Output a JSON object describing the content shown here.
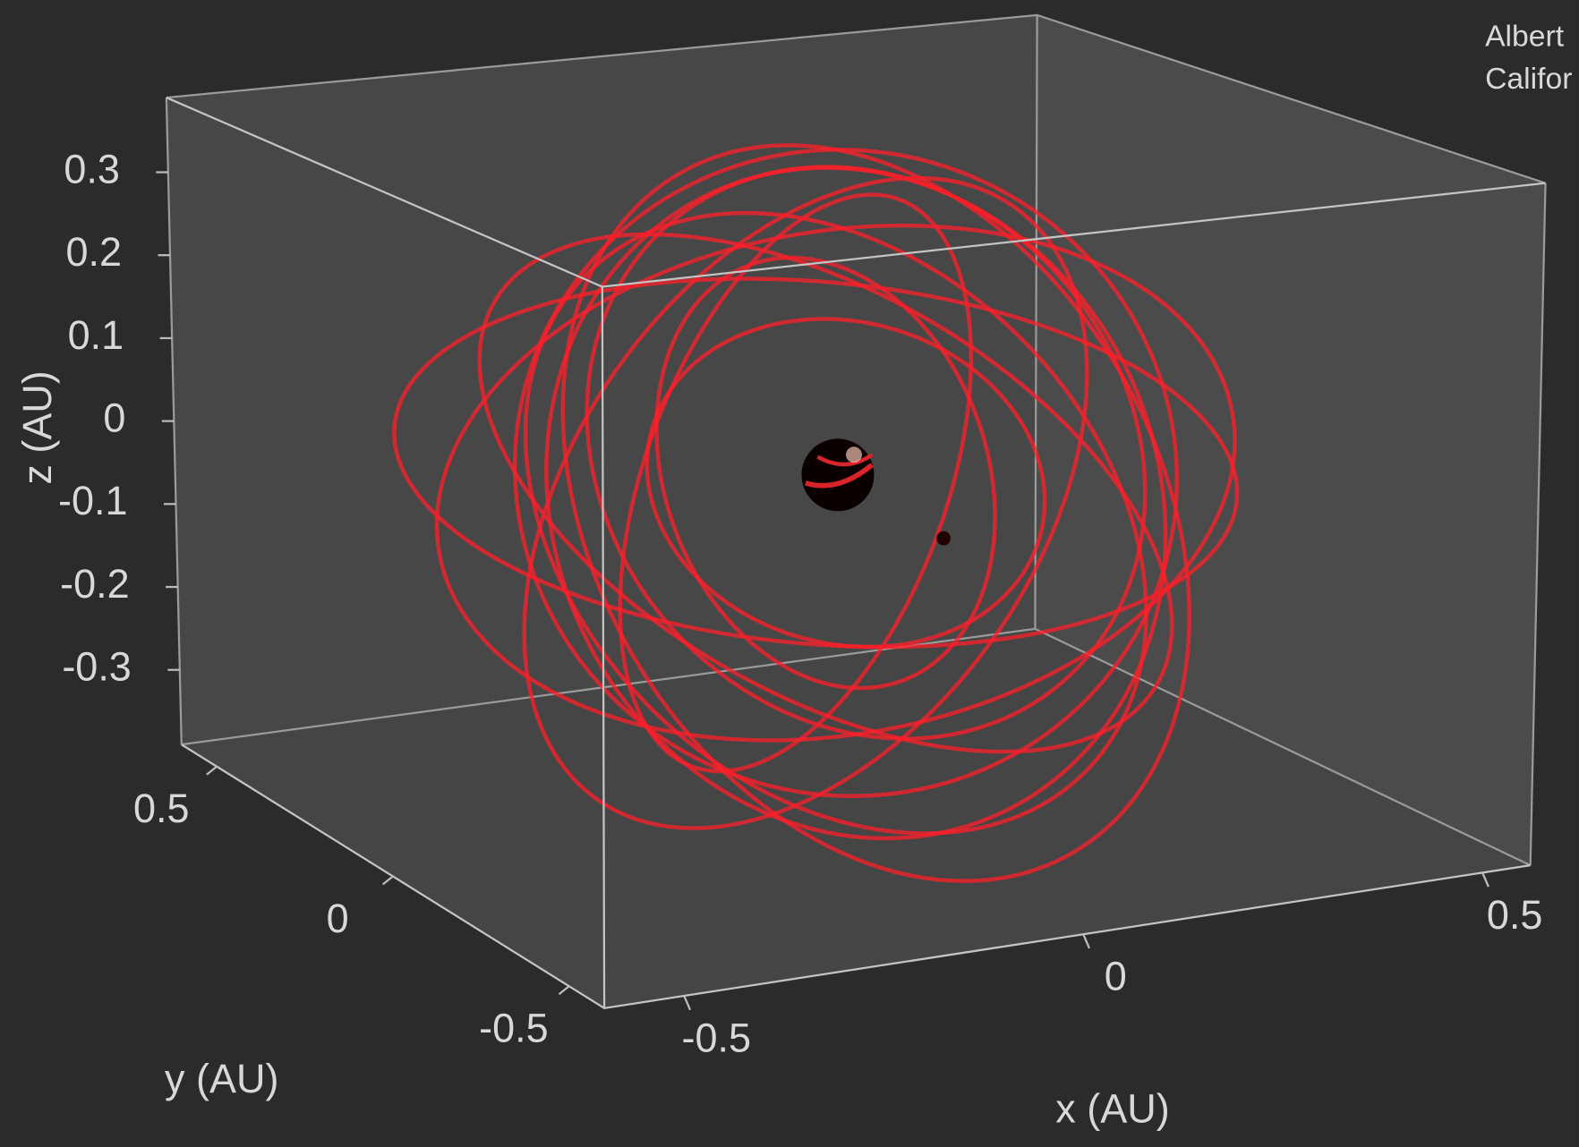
{
  "chart_data": {
    "type": "line3d",
    "xlabel": "x   (AU)",
    "ylabel": "y   (AU)",
    "zlabel": "z   (AU)",
    "xlim": [
      -0.6,
      0.56
    ],
    "xticks": [
      -0.5,
      0,
      0.5
    ],
    "ylim": [
      0.6,
      -0.6
    ],
    "yticks": [
      0.5,
      0,
      -0.5
    ],
    "zlim": [
      -0.39,
      0.39
    ],
    "zticks": [
      0.3,
      0.2,
      0.1,
      0,
      -0.1,
      -0.2,
      -0.3
    ],
    "annotations": [
      "Albert",
      "Califor"
    ],
    "color": "#ff1f2a"
  }
}
